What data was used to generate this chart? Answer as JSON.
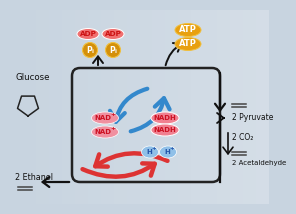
{
  "bg_color": "#c8d4e0",
  "colors": {
    "adp_bg": "#f07070",
    "adp_text": "#cc1111",
    "pi_bg": "#d4900a",
    "pi_border": "#f0c040",
    "atp_bg": "#e8a010",
    "atp_border": "#f0c040",
    "nad_bg": "#f090a0",
    "nad_text": "#cc1122",
    "nadh_bg": "#f08090",
    "nadh_text": "#cc1122",
    "hplus_bg": "#90c0e8",
    "hplus_text": "#2255aa",
    "arrow_blue": "#3388cc",
    "arrow_red": "#dd3333",
    "arrow_black": "#111111",
    "line_color": "#222222",
    "glucose_text": "#111111",
    "label_text": "#111111",
    "bond_color": "#444444"
  },
  "labels": {
    "glucose": "Glucose",
    "adp": "ADP",
    "pi": "P",
    "atp": "ATP",
    "nad": "NAD",
    "nadh": "NADH",
    "hplus": "H",
    "pyruvate": "2 Pyruvate",
    "co2": "2 CO₂",
    "acetaldehyde": "2 Acetaldehyde",
    "ethanol": "2 Ethanol"
  }
}
